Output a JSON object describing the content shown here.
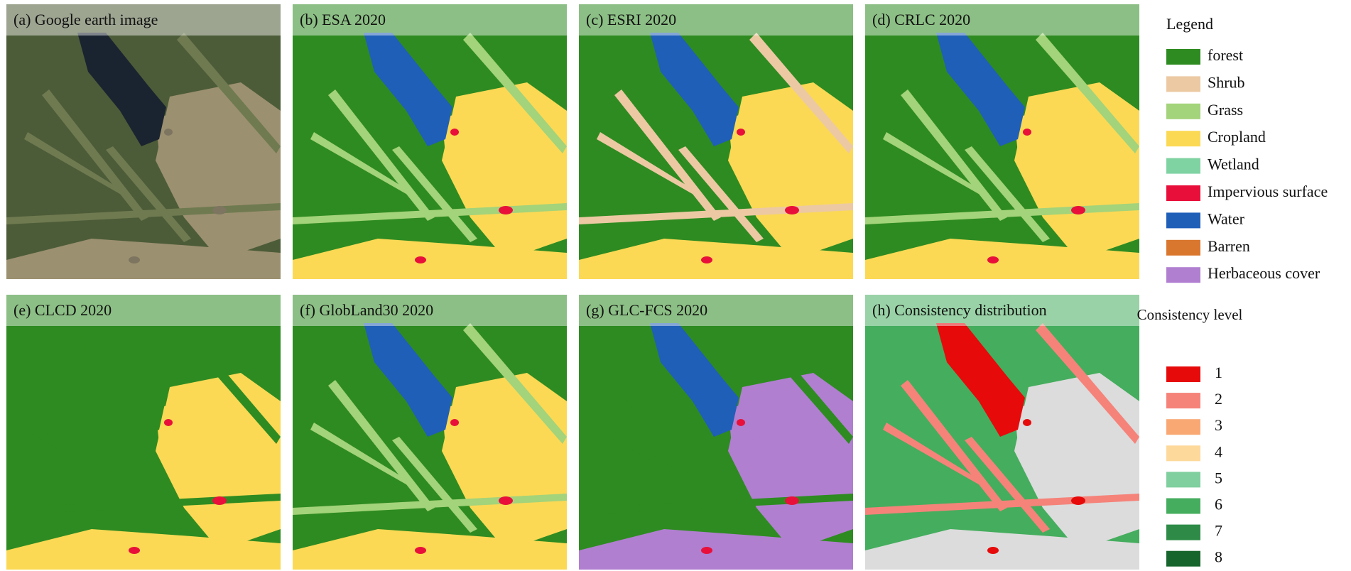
{
  "panels": [
    {
      "title": "(a) Google earth image"
    },
    {
      "title": "(b) ESA 2020"
    },
    {
      "title": "(c) ESRI 2020"
    },
    {
      "title": "(d) CRLC 2020"
    },
    {
      "title": "(e) CLCD 2020"
    },
    {
      "title": "(f) GlobLand30  2020"
    },
    {
      "title": "(g) GLC-FCS 2020"
    },
    {
      "title": "(h) Consistency  distribution"
    }
  ],
  "legend": {
    "title": "Legend",
    "items": [
      {
        "name": "forest",
        "color": "#2e8b21"
      },
      {
        "name": "Shrub",
        "color": "#ecc9a3"
      },
      {
        "name": "Grass",
        "color": "#a3d37a"
      },
      {
        "name": "Cropland",
        "color": "#fbd955"
      },
      {
        "name": "Wetland",
        "color": "#7fd3a3"
      },
      {
        "name": "Impervious surface",
        "color": "#e8103a"
      },
      {
        "name": "Water",
        "color": "#1f5fb8"
      },
      {
        "name": "Barren",
        "color": "#d9772e"
      },
      {
        "name": "Herbaceous cover",
        "color": "#b07fd0"
      }
    ]
  },
  "consistency": {
    "title": "Consistency level",
    "levels": [
      {
        "label": 1,
        "color": "#e60a0a"
      },
      {
        "label": 2,
        "color": "#f5837a"
      },
      {
        "label": 3,
        "color": "#f9a874"
      },
      {
        "label": 4,
        "color": "#fdd99b"
      },
      {
        "label": 5,
        "color": "#7fcf9f"
      },
      {
        "label": 6,
        "color": "#45ad5e"
      },
      {
        "label": 7,
        "color": "#2e8b47"
      },
      {
        "label": 8,
        "color": "#16652c"
      }
    ]
  }
}
